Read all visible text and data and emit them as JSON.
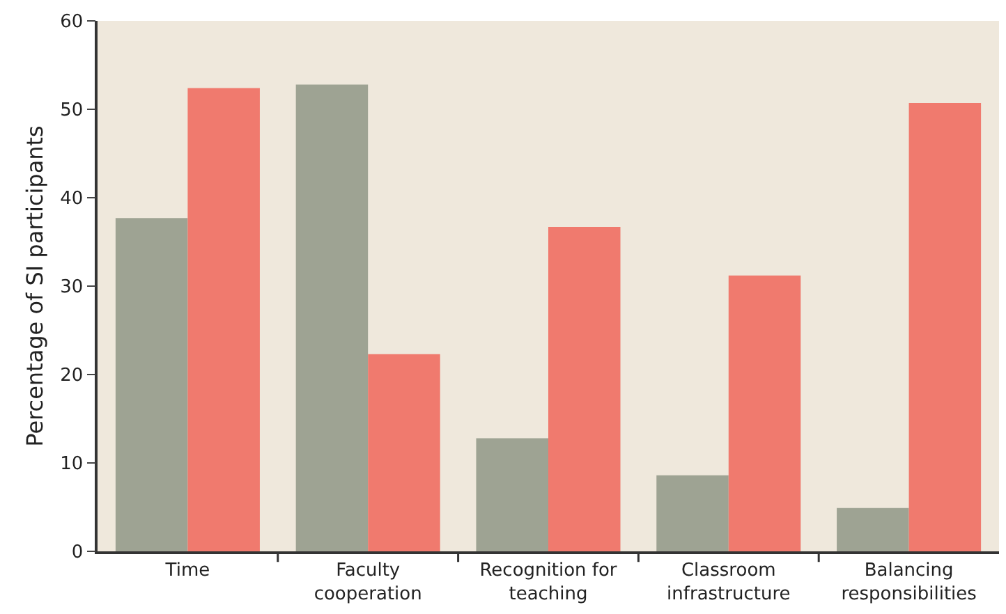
{
  "chart_data": {
    "type": "bar",
    "ylabel": "Percentage of SI participants",
    "categories": [
      "Time",
      "Faculty\ncooperation",
      "Recognition for\nteaching",
      "Classroom\ninfrastructure",
      "Balancing\nresponsibilities"
    ],
    "series": [
      {
        "color": "#9ea393",
        "values": [
          37.7,
          52.8,
          12.8,
          8.6,
          4.9
        ]
      },
      {
        "color": "#f07a6e",
        "values": [
          52.4,
          22.3,
          36.7,
          31.2,
          50.7
        ]
      }
    ],
    "ylim": [
      0,
      60
    ],
    "yticks": [
      0,
      10,
      20,
      30,
      40,
      50,
      60
    ],
    "grid": false,
    "legend": false
  }
}
